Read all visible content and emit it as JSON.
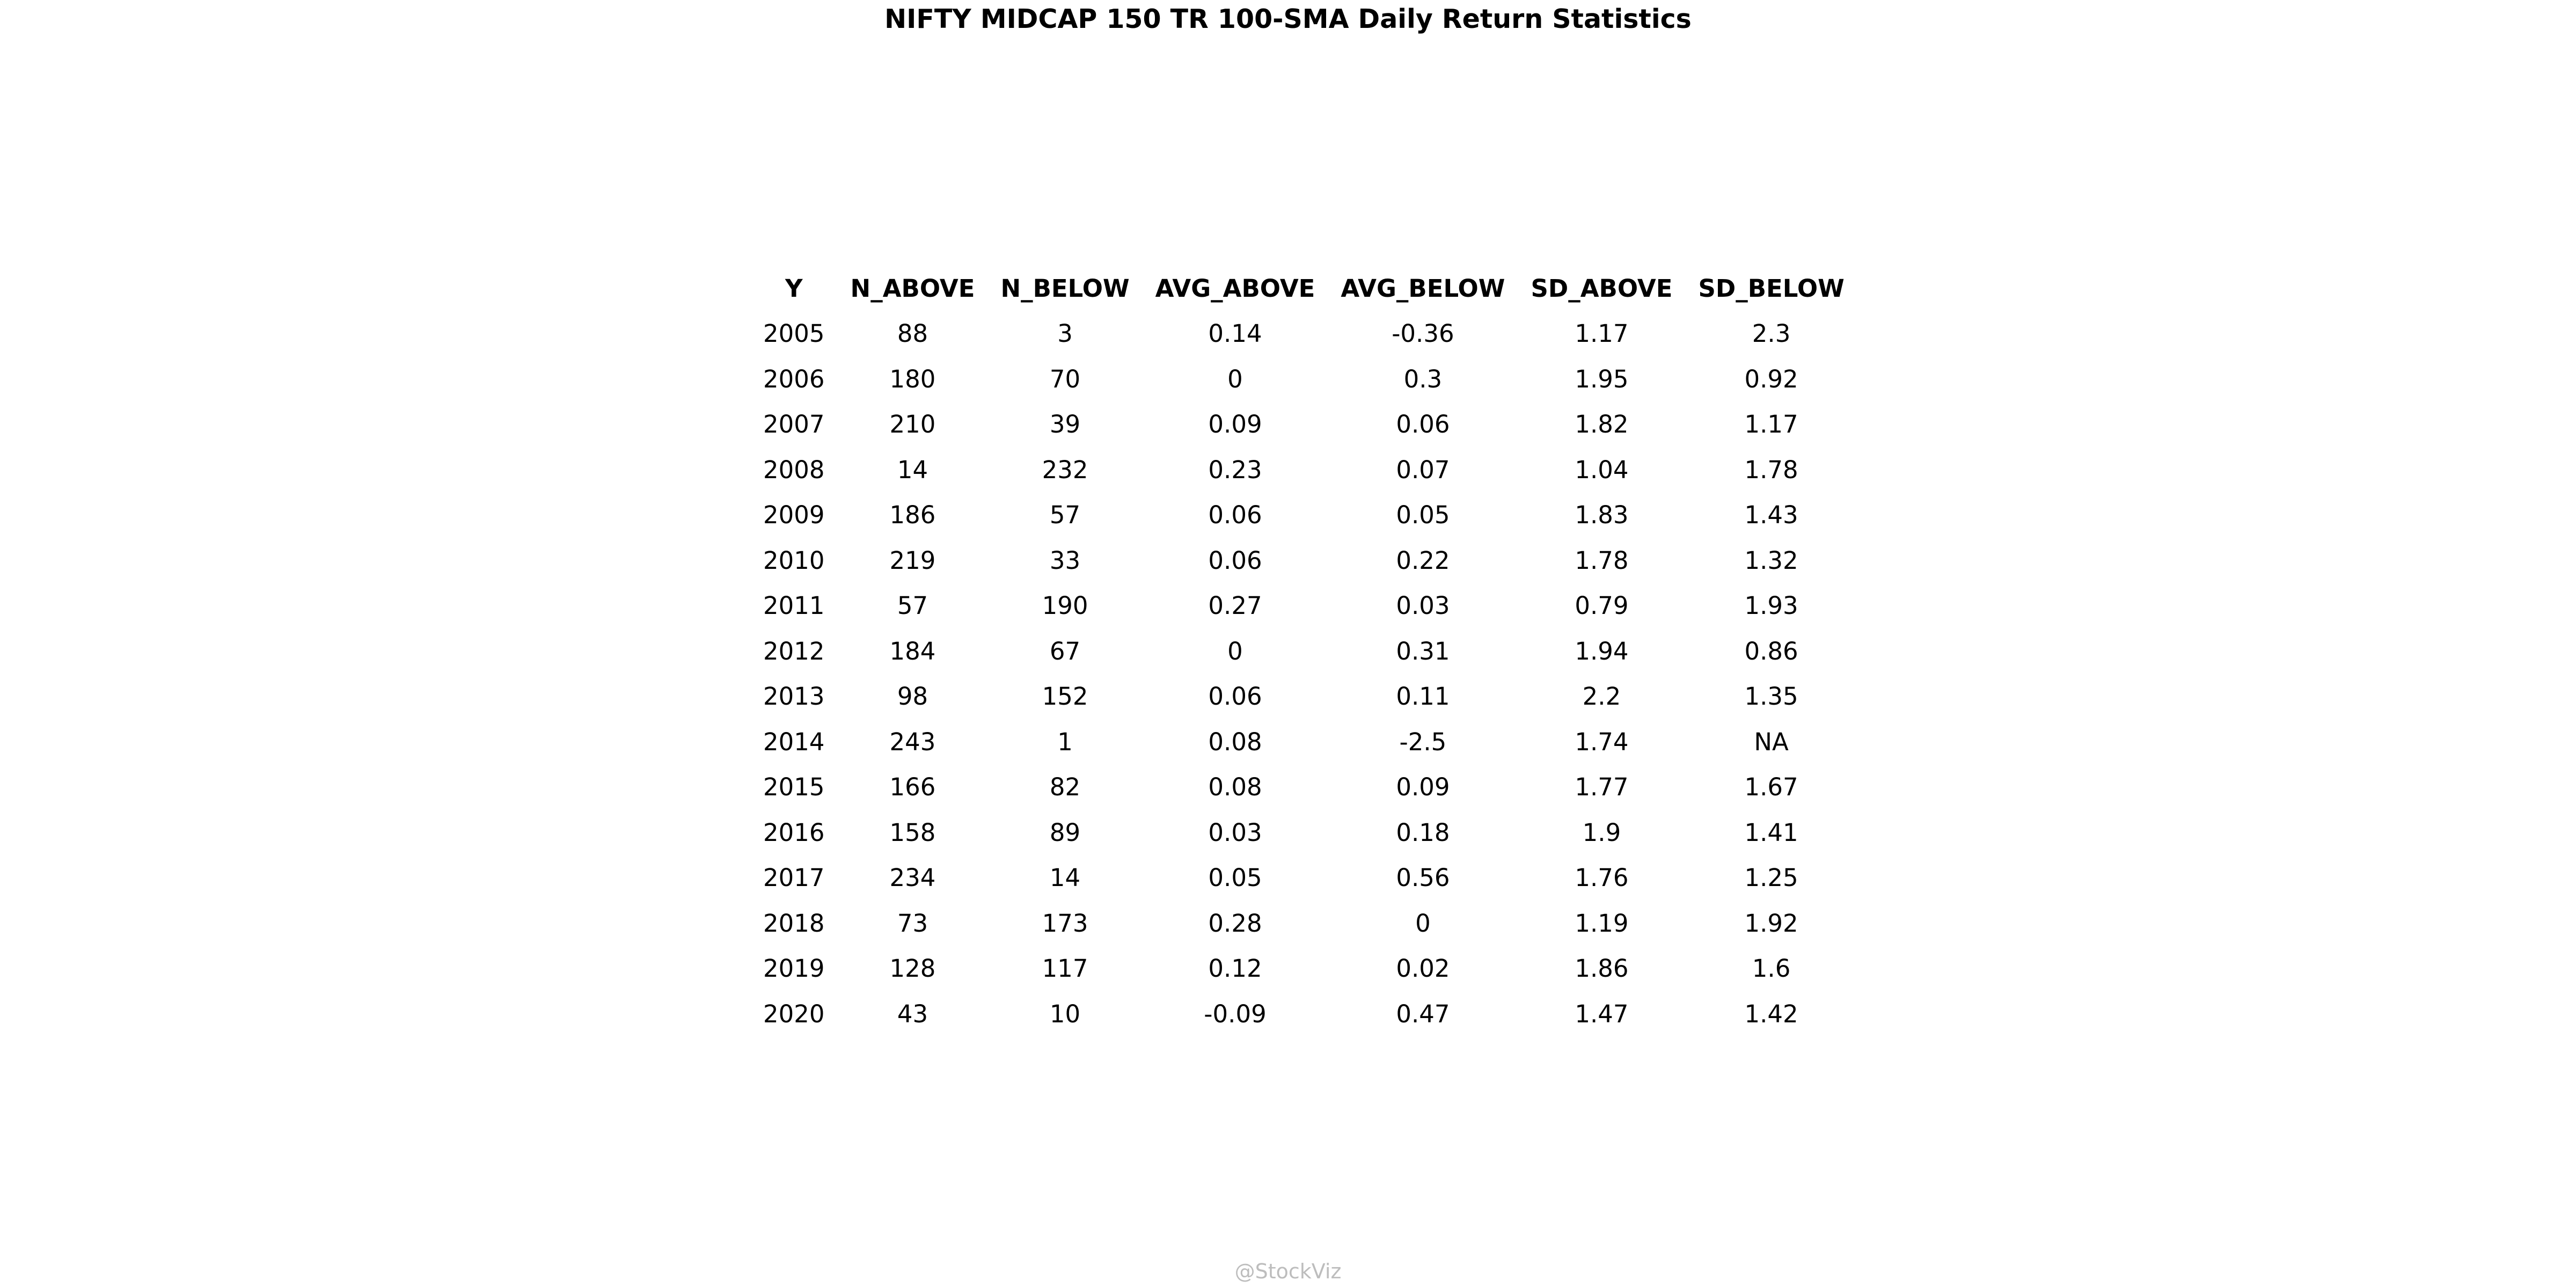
{
  "chart_data": {
    "type": "table",
    "title": "NIFTY MIDCAP 150 TR 100-SMA Daily Return Statistics",
    "columns": [
      "Y",
      "N_ABOVE",
      "N_BELOW",
      "AVG_ABOVE",
      "AVG_BELOW",
      "SD_ABOVE",
      "SD_BELOW"
    ],
    "rows": [
      [
        "2005",
        "88",
        "3",
        "0.14",
        "-0.36",
        "1.17",
        "2.3"
      ],
      [
        "2006",
        "180",
        "70",
        "0",
        "0.3",
        "1.95",
        "0.92"
      ],
      [
        "2007",
        "210",
        "39",
        "0.09",
        "0.06",
        "1.82",
        "1.17"
      ],
      [
        "2008",
        "14",
        "232",
        "0.23",
        "0.07",
        "1.04",
        "1.78"
      ],
      [
        "2009",
        "186",
        "57",
        "0.06",
        "0.05",
        "1.83",
        "1.43"
      ],
      [
        "2010",
        "219",
        "33",
        "0.06",
        "0.22",
        "1.78",
        "1.32"
      ],
      [
        "2011",
        "57",
        "190",
        "0.27",
        "0.03",
        "0.79",
        "1.93"
      ],
      [
        "2012",
        "184",
        "67",
        "0",
        "0.31",
        "1.94",
        "0.86"
      ],
      [
        "2013",
        "98",
        "152",
        "0.06",
        "0.11",
        "2.2",
        "1.35"
      ],
      [
        "2014",
        "243",
        "1",
        "0.08",
        "-2.5",
        "1.74",
        "NA"
      ],
      [
        "2015",
        "166",
        "82",
        "0.08",
        "0.09",
        "1.77",
        "1.67"
      ],
      [
        "2016",
        "158",
        "89",
        "0.03",
        "0.18",
        "1.9",
        "1.41"
      ],
      [
        "2017",
        "234",
        "14",
        "0.05",
        "0.56",
        "1.76",
        "1.25"
      ],
      [
        "2018",
        "73",
        "173",
        "0.28",
        "0",
        "1.19",
        "1.92"
      ],
      [
        "2019",
        "128",
        "117",
        "0.12",
        "0.02",
        "1.86",
        "1.6"
      ],
      [
        "2020",
        "43",
        "10",
        "-0.09",
        "0.47",
        "1.47",
        "1.42"
      ]
    ]
  },
  "watermark": "@StockViz",
  "colors": {
    "text": "#000000",
    "watermark": "#bdbdbd",
    "background": "#ffffff"
  }
}
